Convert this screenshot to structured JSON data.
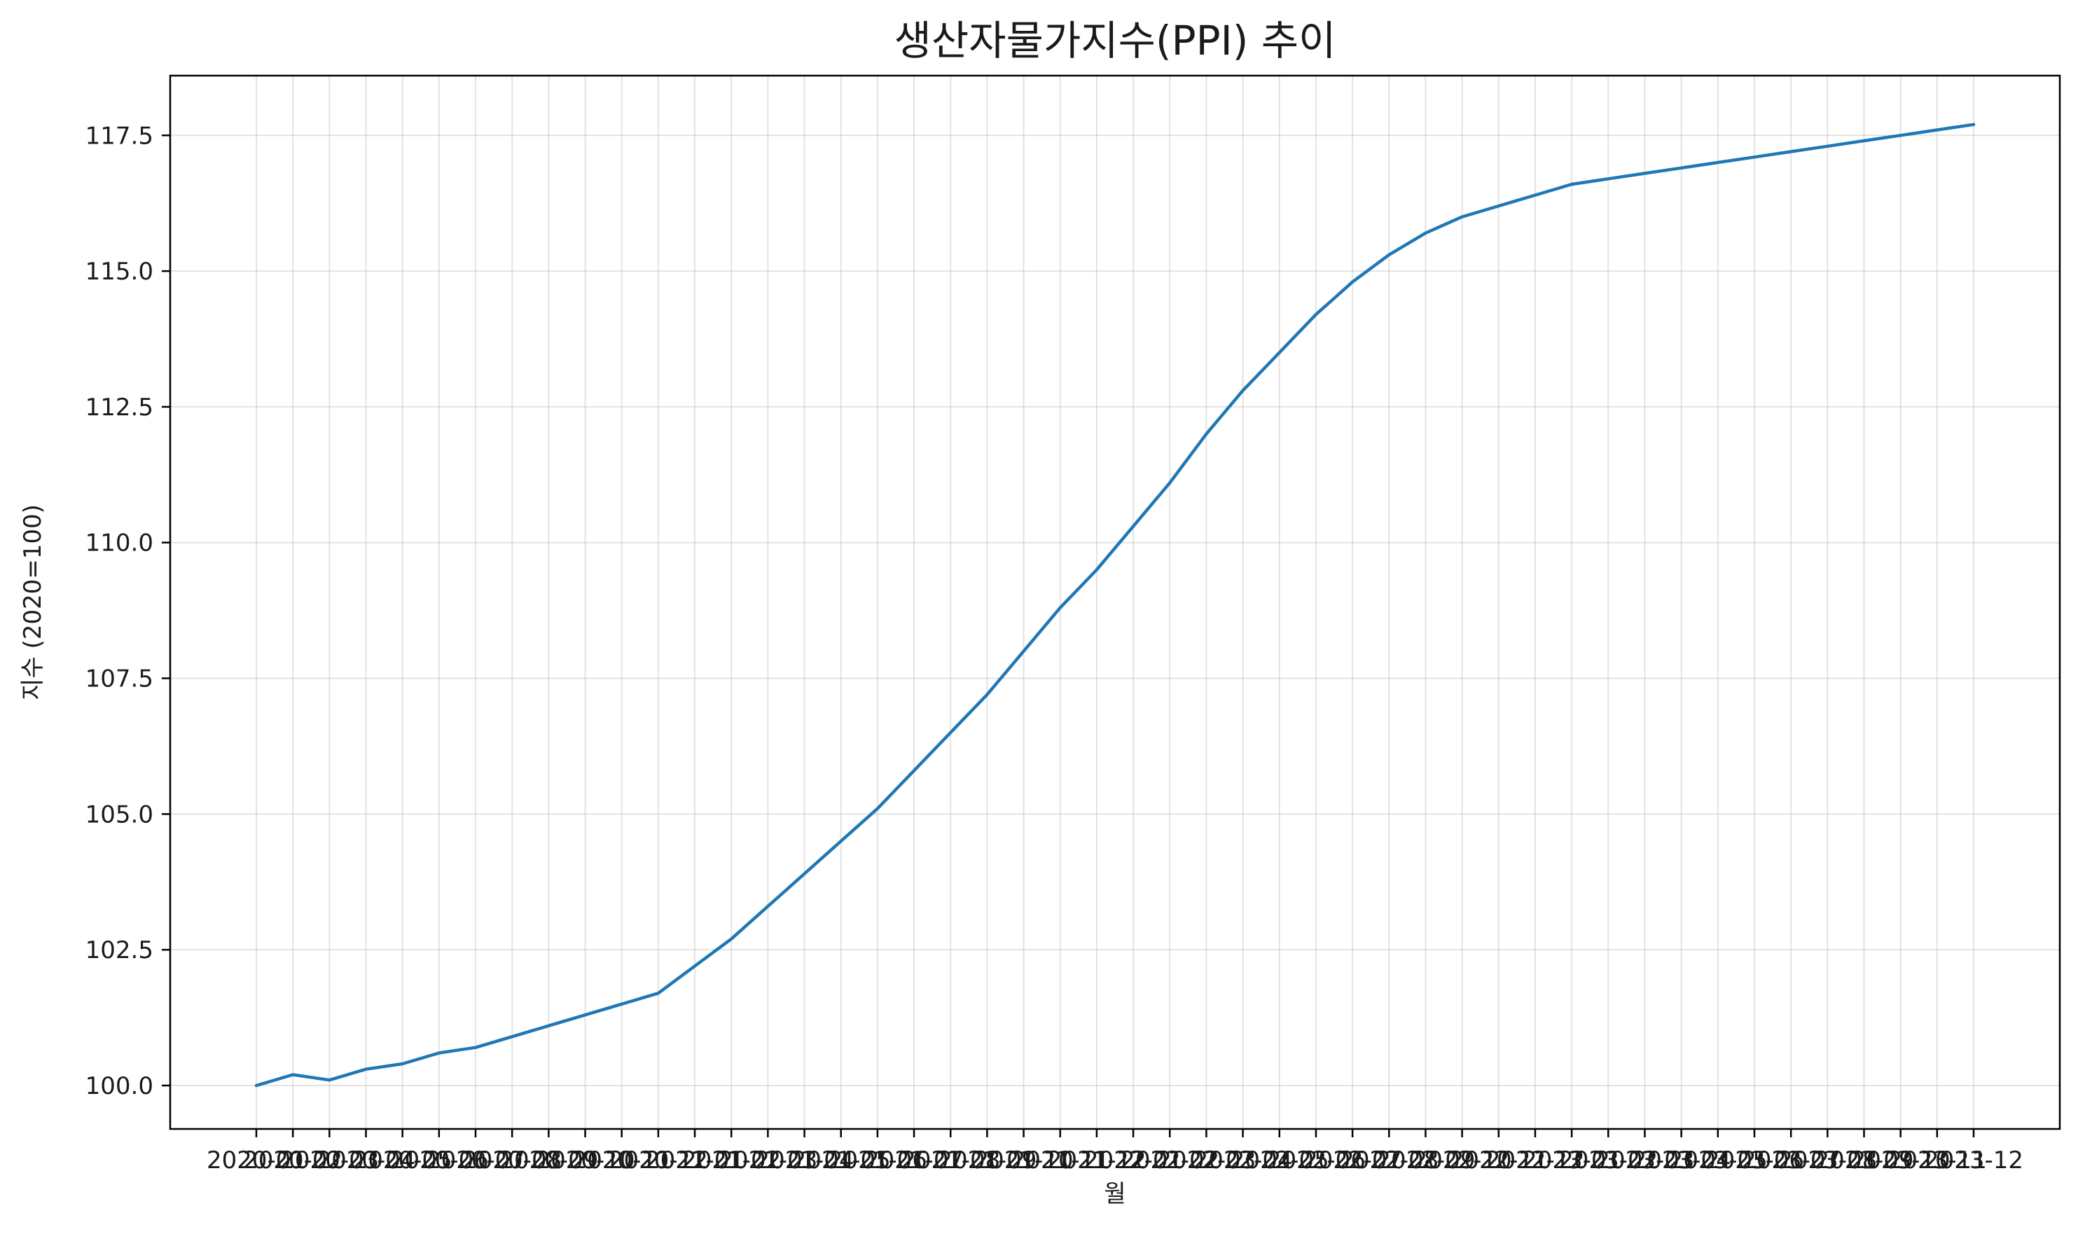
{
  "chart_data": {
    "type": "line",
    "title": "생산자물가지수(PPI) 추이",
    "xlabel": "월",
    "ylabel": "지수 (2020=100)",
    "ylim": [
      99.2,
      118.6
    ],
    "yticks": [
      100.0,
      102.5,
      105.0,
      107.5,
      110.0,
      112.5,
      115.0,
      117.5
    ],
    "ytick_labels": [
      "100.0",
      "102.5",
      "105.0",
      "107.5",
      "110.0",
      "112.5",
      "115.0",
      "117.5"
    ],
    "grid": true,
    "legend": "none",
    "categories": [
      "2020-01",
      "2020-02",
      "2020-03",
      "2020-04",
      "2020-05",
      "2020-06",
      "2020-07",
      "2020-08",
      "2020-09",
      "2020-10",
      "2020-11",
      "2020-12",
      "2021-01",
      "2021-02",
      "2021-03",
      "2021-04",
      "2021-05",
      "2021-06",
      "2021-07",
      "2021-08",
      "2021-09",
      "2021-10",
      "2021-11",
      "2021-12",
      "2022-01",
      "2022-02",
      "2022-03",
      "2022-04",
      "2022-05",
      "2022-06",
      "2022-07",
      "2022-08",
      "2022-09",
      "2022-10",
      "2022-11",
      "2022-12",
      "2023-01",
      "2023-02",
      "2023-03",
      "2023-04",
      "2023-05",
      "2023-06",
      "2023-07",
      "2023-08",
      "2023-09",
      "2023-10",
      "2023-11",
      "2023-12"
    ],
    "series": [
      {
        "color": "#1f77b4",
        "values": [
          100.0,
          100.2,
          100.1,
          100.3,
          100.4,
          100.6,
          100.7,
          100.9,
          101.1,
          101.3,
          101.5,
          101.7,
          102.2,
          102.7,
          103.3,
          103.9,
          104.5,
          105.1,
          105.8,
          106.5,
          107.2,
          108.0,
          108.8,
          109.5,
          110.3,
          111.1,
          112.0,
          112.8,
          113.5,
          114.2,
          114.8,
          115.3,
          115.7,
          116.0,
          116.2,
          116.4,
          116.6,
          116.7,
          116.8,
          116.9,
          117.0,
          117.1,
          117.2,
          117.3,
          117.4,
          117.5,
          117.6,
          117.7
        ]
      }
    ]
  }
}
